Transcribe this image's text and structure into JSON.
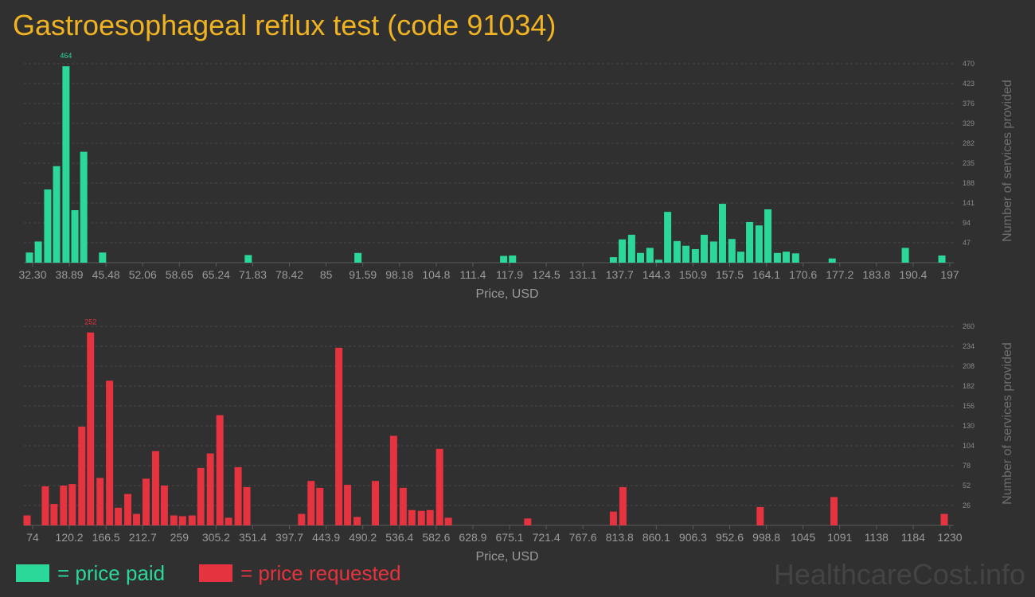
{
  "page": {
    "title": "Gastroesophageal reflux test (code 91034)",
    "title_color": "#f0b323",
    "background": "#303030",
    "watermark": "HealthcareCost.info"
  },
  "legend": {
    "paid_label": "= price paid",
    "requested_label": "= price requested",
    "paid_color": "#2bd899",
    "requested_color": "#e5333f"
  },
  "chart_data": [
    {
      "type": "bar",
      "name": "price-paid",
      "color": "#2bd899",
      "xlabel": "Price, USD",
      "ylabel": "Number of services provided",
      "xlim": [
        31.3,
        198.0
      ],
      "ylim": [
        0,
        470
      ],
      "x_ticks": [
        "32.30",
        "38.89",
        "45.48",
        "52.06",
        "58.65",
        "65.24",
        "71.83",
        "78.42",
        "85",
        "91.59",
        "98.18",
        "104.8",
        "111.4",
        "117.9",
        "124.5",
        "131.1",
        "137.7",
        "144.3",
        "150.9",
        "157.5",
        "164.1",
        "170.6",
        "177.2",
        "183.8",
        "190.4",
        "197"
      ],
      "y_ticks": [
        47,
        94,
        141,
        188,
        235,
        282,
        329,
        376,
        423,
        470
      ],
      "max_label": "464",
      "x": [
        32.3,
        33.9,
        35.6,
        37.2,
        38.9,
        40.5,
        42.1,
        45.5,
        71.8,
        91.6,
        117.9,
        119.5,
        137.7,
        139.3,
        141.0,
        142.6,
        144.3,
        145.9,
        147.5,
        149.2,
        150.8,
        152.5,
        154.1,
        155.8,
        157.4,
        159.1,
        160.7,
        162.3,
        164.0,
        165.6,
        167.3,
        168.9,
        170.6,
        177.2,
        190.4,
        197.0
      ],
      "values": [
        24,
        50,
        173,
        228,
        464,
        124,
        262,
        24,
        18,
        23,
        16,
        17,
        13,
        55,
        66,
        23,
        35,
        7,
        120,
        51,
        40,
        32,
        66,
        50,
        139,
        56,
        26,
        96,
        88,
        126,
        23,
        26,
        22,
        10,
        35,
        17
      ]
    },
    {
      "type": "bar",
      "name": "price-requested",
      "color": "#e5333f",
      "xlabel": "Price, USD",
      "ylabel": "Number of services provided",
      "xlim": [
        70.0,
        1234.0
      ],
      "ylim": [
        0,
        260
      ],
      "x_ticks": [
        "74",
        "120.2",
        "166.5",
        "212.7",
        "259",
        "305.2",
        "351.4",
        "397.7",
        "443.9",
        "490.2",
        "536.4",
        "582.6",
        "628.9",
        "675.1",
        "721.4",
        "767.6",
        "813.8",
        "860.1",
        "906.3",
        "952.6",
        "998.8",
        "1045",
        "1091",
        "1138",
        "1184",
        "1230"
      ],
      "y_ticks": [
        26,
        52,
        78,
        104,
        130,
        156,
        182,
        208,
        234,
        260
      ],
      "max_label": "252",
      "x": [
        74,
        97,
        108,
        120,
        131,
        143,
        154,
        166,
        178,
        189,
        201,
        212,
        224,
        236,
        247,
        259,
        270,
        282,
        293,
        305,
        317,
        328,
        340,
        351,
        420,
        432,
        443,
        467,
        478,
        490,
        513,
        536,
        548,
        559,
        571,
        582,
        594,
        605,
        705,
        813,
        825,
        998,
        1091,
        1230
      ],
      "values": [
        13,
        51,
        28,
        52,
        54,
        129,
        252,
        62,
        189,
        23,
        41,
        15,
        61,
        97,
        52,
        13,
        12,
        13,
        75,
        94,
        144,
        10,
        76,
        50,
        15,
        58,
        49,
        232,
        53,
        11,
        58,
        117,
        49,
        20,
        19,
        20,
        100,
        10,
        9,
        18,
        50,
        24,
        37,
        15
      ]
    }
  ]
}
